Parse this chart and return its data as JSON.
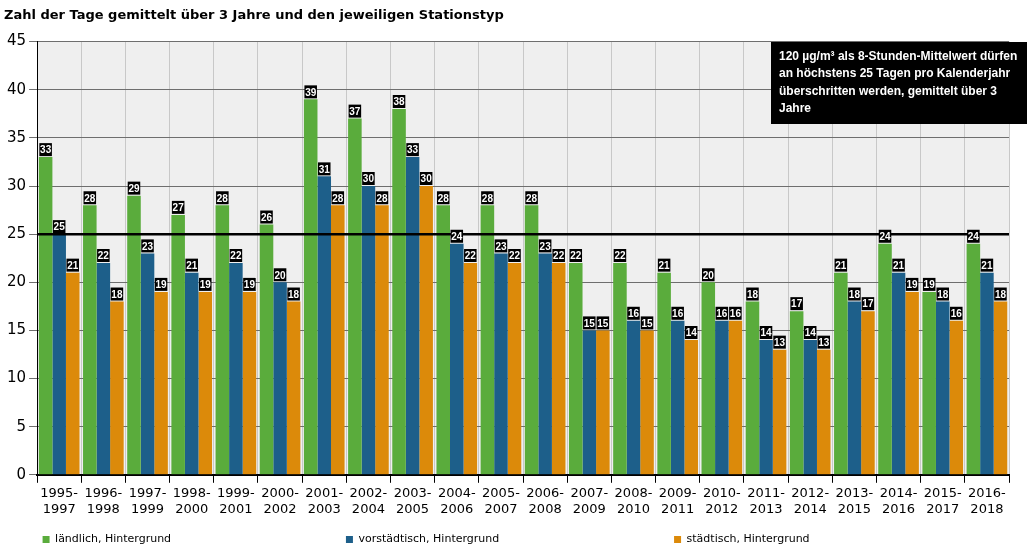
{
  "chart_data": {
    "type": "bar",
    "title": "Zahl der Tage gemittelt über 3 Jahre und den jeweiligen Stationstyp",
    "categories": [
      "1995-1997",
      "1996-1998",
      "1997-1999",
      "1998-2000",
      "1999-2001",
      "2000-2002",
      "2001-2003",
      "2002-2004",
      "2003-2005",
      "2004-2006",
      "2005-2007",
      "2006-2008",
      "2007-2009",
      "2008-2010",
      "2009-2011",
      "2010-2012",
      "2011-2013",
      "2012-2014",
      "2013-2015",
      "2014-2016",
      "2015-2017",
      "2016-2018"
    ],
    "series": [
      {
        "name": "ländlich, Hintergrund",
        "color": "#5aac3c",
        "values": [
          33,
          28,
          29,
          27,
          28,
          26,
          39,
          37,
          38,
          28,
          28,
          28,
          22,
          22,
          21,
          20,
          18,
          17,
          21,
          24,
          19,
          24
        ]
      },
      {
        "name": "vorstädtisch, Hintergrund",
        "color": "#1d5f8a",
        "values": [
          25,
          22,
          23,
          21,
          22,
          20,
          31,
          30,
          33,
          24,
          23,
          23,
          15,
          16,
          16,
          16,
          14,
          14,
          18,
          21,
          18,
          21
        ]
      },
      {
        "name": "städtisch, Hintergrund",
        "color": "#dc8a0a",
        "values": [
          21,
          18,
          19,
          19,
          19,
          18,
          28,
          28,
          30,
          22,
          22,
          22,
          15,
          15,
          14,
          16,
          13,
          13,
          17,
          19,
          16,
          18
        ]
      }
    ],
    "ylim": [
      0,
      45
    ],
    "yticks": [
      0,
      5,
      10,
      15,
      20,
      25,
      30,
      35,
      40,
      45
    ],
    "grid": true,
    "legend": "bottom",
    "data_labels": true,
    "ref_lines": [
      {
        "axis": "y",
        "value": 25,
        "color": "#000000"
      }
    ],
    "annotations": [
      "120 µg/m³ als 8-Stunden-Mittelwert dürfen an höchstens 25 Tagen pro Kalenderjahr überschritten werden, gemittelt über 3 Jahre"
    ]
  }
}
